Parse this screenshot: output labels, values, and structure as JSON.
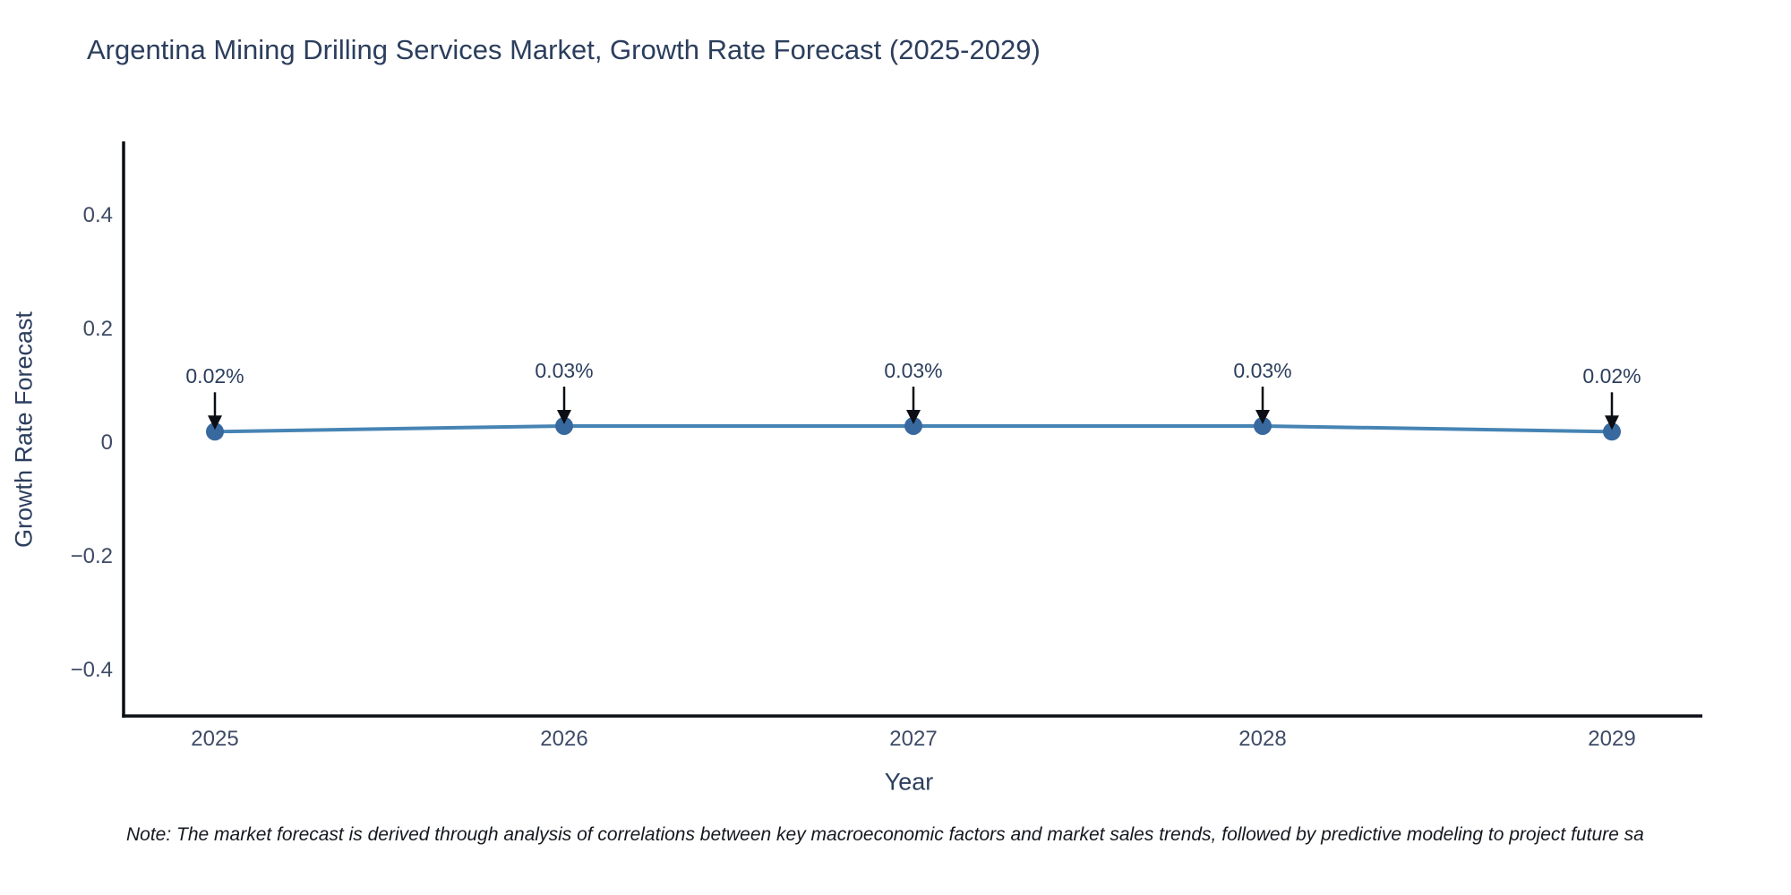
{
  "title": "Argentina Mining Drilling Services Market, Growth Rate Forecast (2025-2029)",
  "note": "Note: The market forecast is derived through analysis of correlations between key macroeconomic factors and market sales trends, followed by predictive modeling to project future sa",
  "chart_data": {
    "type": "line",
    "title": "Argentina Mining Drilling Services Market, Growth Rate Forecast (2025-2029)",
    "xlabel": "Year",
    "ylabel": "Growth Rate Forecast",
    "x": [
      2025,
      2026,
      2027,
      2028,
      2029
    ],
    "x_tick_labels": [
      "2025",
      "2026",
      "2027",
      "2028",
      "2029"
    ],
    "series": [
      {
        "name": "Growth Rate Forecast",
        "values": [
          0.02,
          0.03,
          0.03,
          0.03,
          0.02
        ]
      }
    ],
    "point_labels": [
      "0.02%",
      "0.03%",
      "0.03%",
      "0.03%",
      "0.02%"
    ],
    "y_ticks": [
      0.4,
      0.2,
      0,
      -0.2,
      -0.4
    ],
    "y_tick_labels": [
      "0.4",
      "0.2",
      "0",
      "−0.2",
      "−0.4"
    ],
    "ylim": [
      -0.48,
      0.53
    ],
    "grid": false,
    "legend_position": "none",
    "colors": {
      "line": "#4684b4",
      "marker": "#38699e",
      "axis": "#0b0e14",
      "arrow": "#0b0e14",
      "title_text": "#2c3e5d",
      "tick_text": "#3e4b66"
    }
  }
}
